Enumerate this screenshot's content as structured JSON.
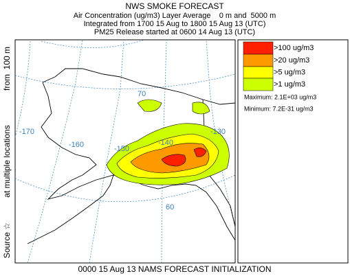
{
  "header": {
    "title": "NWS SMOKE FORECAST",
    "lines": [
      "Air Concentration (ug/m3) Layer Average    0 m and  5000 m",
      "Integrated from 1700 15 Aug to 1800 15 Aug 13 (UTC)",
      "PM25 Release started at 0600 14 Aug 13 (UTC)"
    ]
  },
  "side_label": {
    "source": "Source ☆",
    "locations": "at multiple locations",
    "height": "from  100 m"
  },
  "legend": {
    "items": [
      {
        "label": ">100 ug/m3",
        "color": "#ff2000"
      },
      {
        "label": ">20 ug/m3",
        "color": "#ff9900"
      },
      {
        "label": ">5 ug/m3",
        "color": "#ffff00"
      },
      {
        "label": ">1 ug/m3",
        "color": "#ccff00"
      }
    ],
    "maximum": "Maximum: 2.1E+03 ug/m3",
    "minimum": "Minimum: 7.2E-31 ug/m3"
  },
  "map": {
    "labels": [
      "-170",
      "-160",
      "-150",
      "-140",
      "-130",
      "70",
      "60"
    ]
  },
  "footer": "0000 15 Aug 13 NAMS FORECAST INITIALIZATION"
}
